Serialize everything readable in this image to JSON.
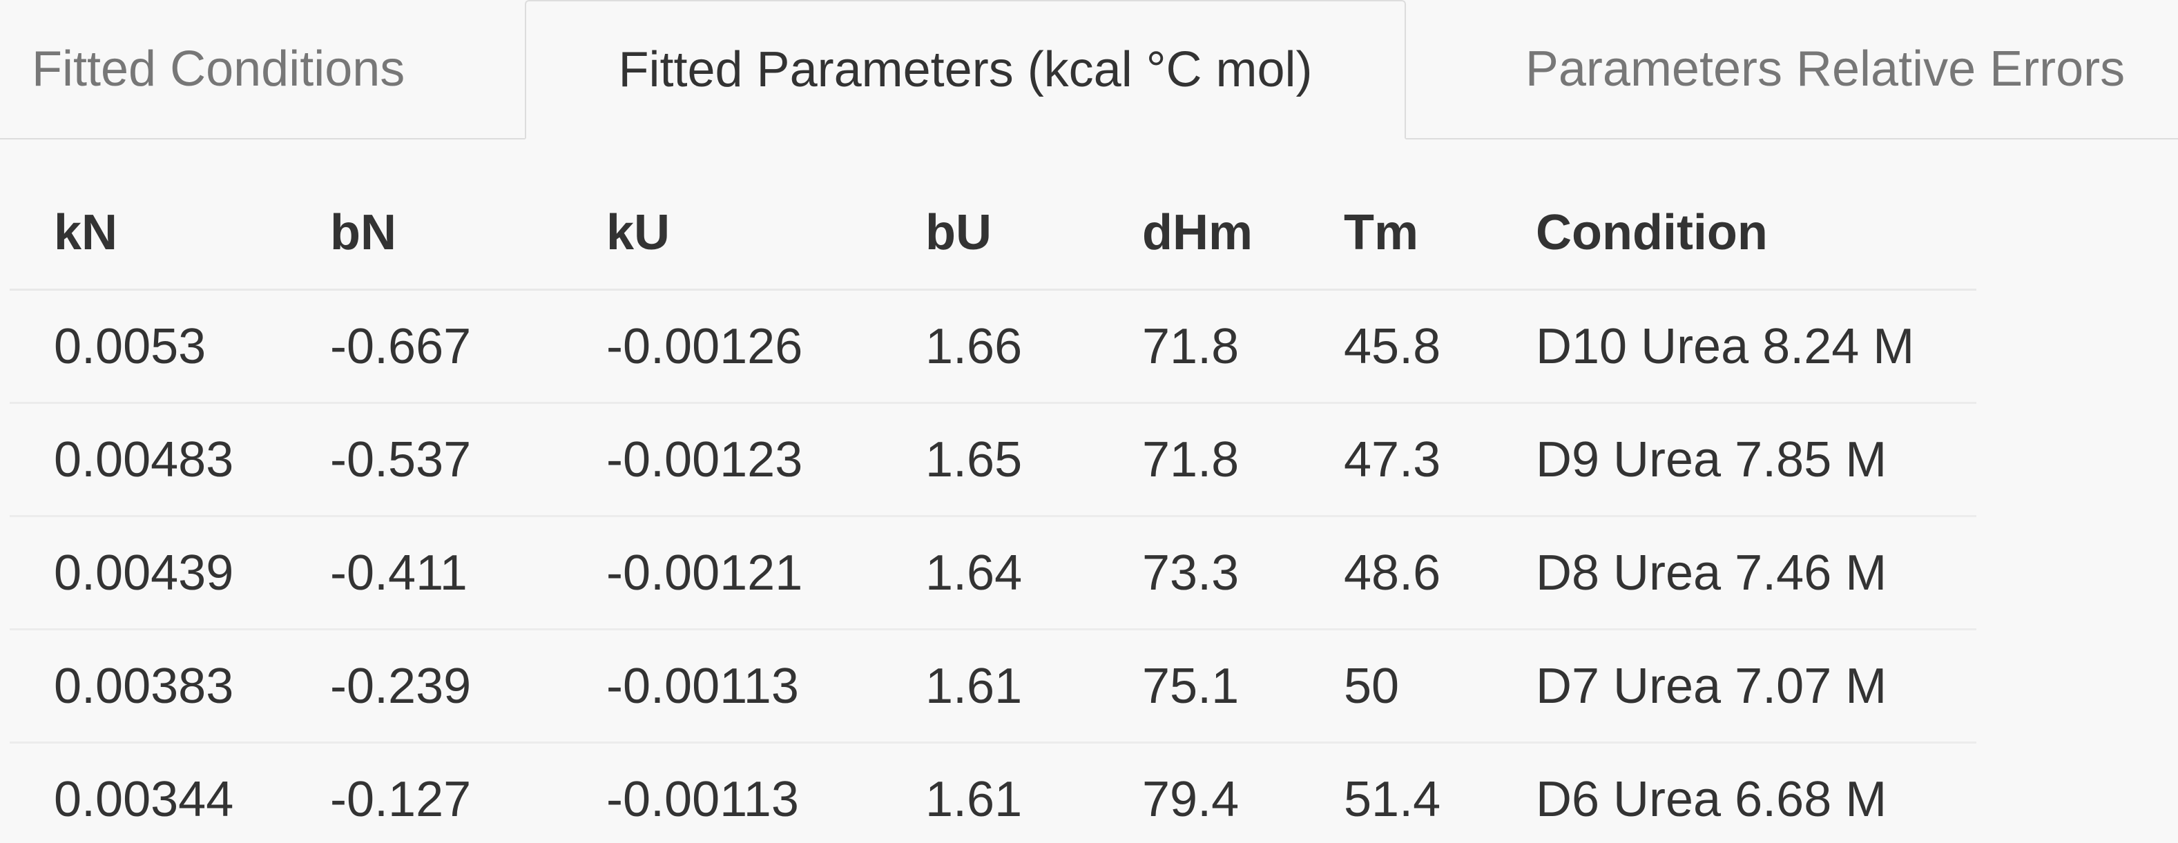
{
  "tabs": [
    {
      "label": "Fitted Conditions",
      "active": false
    },
    {
      "label": "Fitted Parameters (kcal °C mol)",
      "active": true
    },
    {
      "label": "Parameters Relative Errors",
      "active": false
    }
  ],
  "table": {
    "headers": [
      "kN",
      "bN",
      "kU",
      "bU",
      "dHm",
      "Tm",
      "Condition"
    ],
    "rows": [
      [
        "0.0053",
        "-0.667",
        "-0.00126",
        "1.66",
        "71.8",
        "45.8",
        "D10 Urea 8.24 M"
      ],
      [
        "0.00483",
        "-0.537",
        "-0.00123",
        "1.65",
        "71.8",
        "47.3",
        "D9 Urea 7.85 M"
      ],
      [
        "0.00439",
        "-0.411",
        "-0.00121",
        "1.64",
        "73.3",
        "48.6",
        "D8 Urea 7.46 M"
      ],
      [
        "0.00383",
        "-0.239",
        "-0.00113",
        "1.61",
        "75.1",
        "50",
        "D7 Urea 7.07 M"
      ],
      [
        "0.00344",
        "-0.127",
        "-0.00113",
        "1.61",
        "79.4",
        "51.4",
        "D6 Urea 6.68 M"
      ]
    ]
  },
  "colors": {
    "background": "#f8f8f8",
    "text": "#333333",
    "inactive_tab_text": "#777777",
    "border": "#dddddd"
  }
}
